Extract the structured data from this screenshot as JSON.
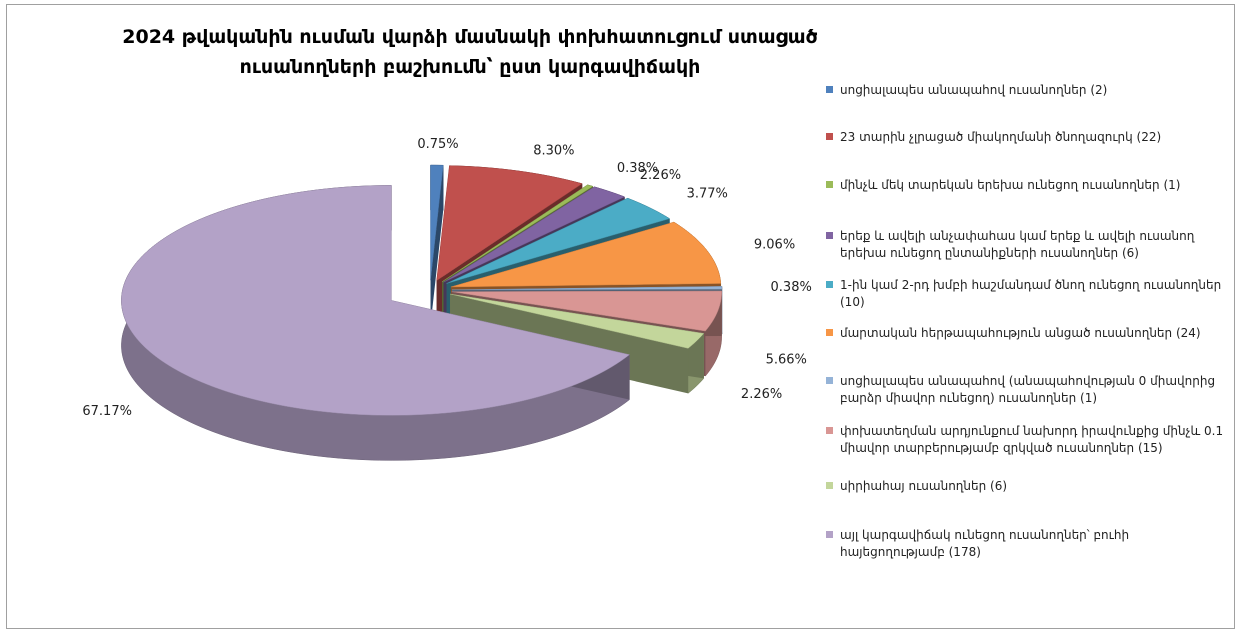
{
  "chart_data": {
    "type": "pie3d",
    "title": "2024 թվականին ուսման վարձի մասնակի փոխհատուցում ստացած ուսանողների բաշխումն՝ ըստ կարգավիճակի",
    "categories": [
      "սոցիալապես անապահով ուսանողներ (2)",
      "23 տարին չլրացած միակողմանի ծնողազուրկ (22)",
      "մինչև մեկ տարեկան երեխա ունեցող ուսանողներ (1)",
      "երեք և ավելի անչափահաս կամ երեք և ավելի ուսանող երեխա ունեցող ընտանիքների ուսանողներ (6)",
      "1-ին կամ 2-րդ խմբի հաշմանդամ ծնող ունեցող ուսանողներ (10)",
      "մարտական հերթապահություն անցած ուսանողներ (24)",
      "սոցիալապես անապահով (անապահովության 0 միավորից բարձր միավոր ունեցող) ուսանողներ (1)",
      "փոխատեղման արդյունքում նախորդ իրավունքից մինչև 0.1 միավոր տարբերությամբ զրկված ուսանողներ (15)",
      "սիրիահայ ուսանողներ (6)",
      "այլ կարգավիճակ ունեցող ուսանողներ՝ բուհի հայեցողությամբ (178)"
    ],
    "values": [
      0.75,
      8.3,
      0.38,
      2.26,
      3.77,
      9.06,
      0.38,
      5.66,
      2.26,
      67.17
    ],
    "value_labels": [
      "0.75%",
      "8.30%",
      "0.38%",
      "2.26%",
      "3.77%",
      "9.06%",
      "0.38%",
      "5.66%",
      "2.26%",
      "67.17%"
    ],
    "colors": [
      "#4f81bd",
      "#c0504d",
      "#9bbb59",
      "#8064a2",
      "#4bacc6",
      "#f79646",
      "#95b3d7",
      "#d99694",
      "#c3d69b",
      "#b3a2c7"
    ],
    "legend": "right"
  }
}
